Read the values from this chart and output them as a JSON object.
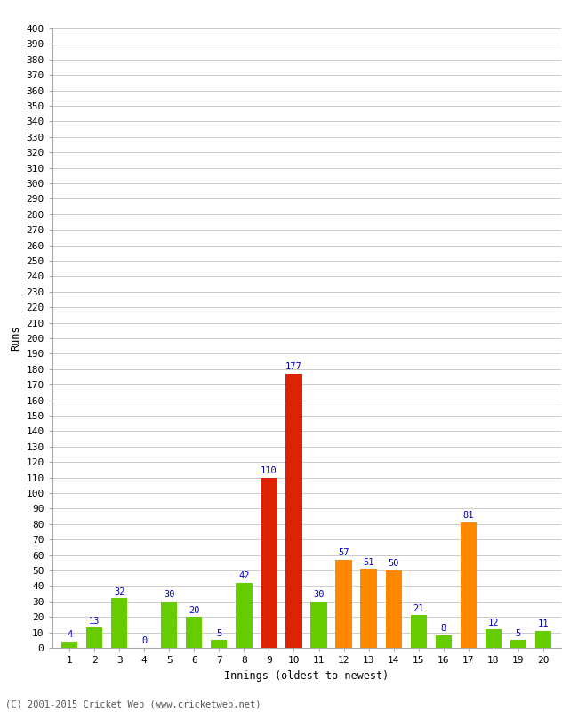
{
  "title": "",
  "xlabel": "Innings (oldest to newest)",
  "ylabel": "Runs",
  "footer": "(C) 2001-2015 Cricket Web (www.cricketweb.net)",
  "innings": [
    1,
    2,
    3,
    4,
    5,
    6,
    7,
    8,
    9,
    10,
    11,
    12,
    13,
    14,
    15,
    16,
    17,
    18,
    19,
    20
  ],
  "values": [
    4,
    13,
    32,
    0,
    30,
    20,
    5,
    42,
    110,
    177,
    30,
    57,
    51,
    50,
    21,
    8,
    81,
    12,
    5,
    11
  ],
  "bar_colors": [
    "#66cc00",
    "#66cc00",
    "#66cc00",
    "#66cc00",
    "#66cc00",
    "#66cc00",
    "#66cc00",
    "#66cc00",
    "#dd2200",
    "#dd2200",
    "#66cc00",
    "#ff8800",
    "#ff8800",
    "#ff8800",
    "#66cc00",
    "#66cc00",
    "#ff8800",
    "#66cc00",
    "#66cc00",
    "#66cc00"
  ],
  "ylim": [
    0,
    400
  ],
  "ytick_step": 10,
  "label_color": "#0000cc",
  "background_color": "#ffffff",
  "grid_color": "#cccccc",
  "label_fontsize": 7.5,
  "axis_tick_fontsize": 8,
  "axis_label_fontsize": 8.5,
  "footer_fontsize": 7.5,
  "bar_width": 0.65
}
